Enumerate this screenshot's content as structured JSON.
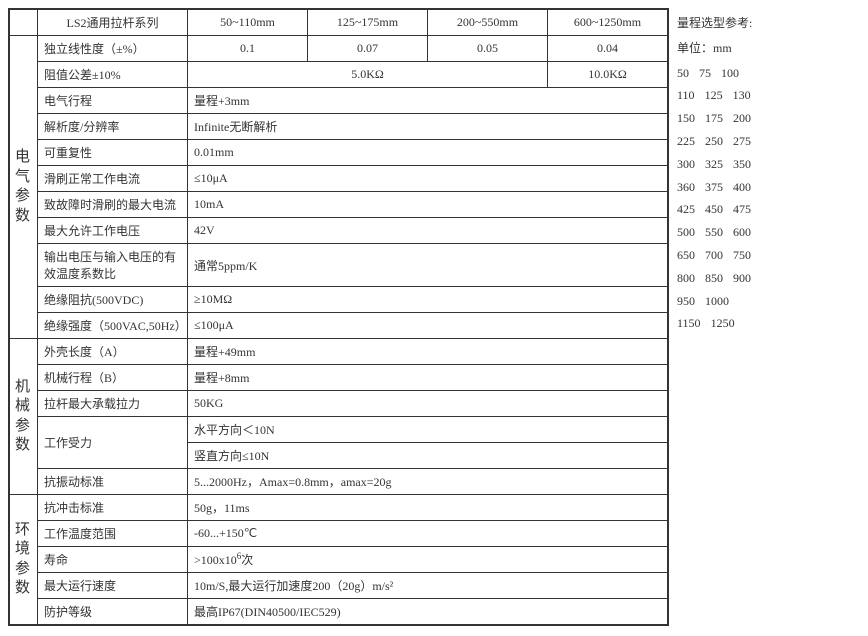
{
  "header": {
    "series": "LS2通用拉杆系列",
    "ranges": [
      "50~110mm",
      "125~175mm",
      "200~550mm",
      "600~1250mm"
    ]
  },
  "sections": {
    "elec": "电气参数",
    "mech": "机械参数",
    "env": "环境参数"
  },
  "rows": {
    "linearity": {
      "label": "独立线性度（±%）",
      "v": [
        "0.1",
        "0.07",
        "0.05",
        "0.04"
      ]
    },
    "resTol": {
      "label": "阻值公差±10%",
      "span3": "5.0KΩ",
      "last": "10.0KΩ"
    },
    "elecTravel": {
      "label": "电气行程",
      "v": "量程+3mm"
    },
    "resolution": {
      "label": "解析度/分辨率",
      "v": "Infinite无断解析"
    },
    "repeat": {
      "label": "可重复性",
      "v": "0.01mm"
    },
    "brushCurr": {
      "label": "滑刷正常工作电流",
      "v": "≤10μA"
    },
    "faultCurr": {
      "label": "致故障时滑刷的最大电流",
      "v": "10mA"
    },
    "maxVolt": {
      "label": "最大允许工作电压",
      "v": "42V"
    },
    "tempCoef": {
      "label": "输出电压与输入电压的有效温度系数比",
      "v": "通常5ppm/K"
    },
    "insRes": {
      "label": "绝缘阻抗(500VDC)",
      "v": "≥10MΩ"
    },
    "insStr": {
      "label": "绝缘强度（500VAC,50Hz）",
      "v": "≤100μA"
    },
    "housingLen": {
      "label": "外壳长度（A）",
      "v": "量程+49mm"
    },
    "mechTravel": {
      "label": "机械行程（B）",
      "v": "量程+8mm"
    },
    "maxPull": {
      "label": "拉杆最大承载拉力",
      "v": "50KG"
    },
    "workForce": {
      "label": "工作受力",
      "h": "水平方向＜10N",
      "v2": "竖直方向≤10N"
    },
    "vib": {
      "label": "抗振动标准",
      "v": "5...2000Hz，Amax=0.8mm，amax=20g"
    },
    "shock": {
      "label": "抗冲击标准",
      "v": "50g，11ms"
    },
    "tempRange": {
      "label": "工作温度范围",
      "v": "-60...+150℃"
    },
    "life": {
      "label": "寿命",
      "v": ">100x10",
      "sup": "6",
      "tail": "次"
    },
    "maxSpeed": {
      "label": "最大运行速度",
      "v": "10m/S,最大运行加速度200（20g）m/s²"
    },
    "ip": {
      "label": "防护等级",
      "v": "最高IP67(DIN40500/IEC529)"
    }
  },
  "side": {
    "title1": "量程选型参考:",
    "title2": "单位：mm",
    "nums": [
      [
        "50",
        "75",
        "100"
      ],
      [
        "110",
        "125",
        "130"
      ],
      [
        "150",
        "175",
        "200"
      ],
      [
        "225",
        "250",
        "275"
      ],
      [
        "300",
        "325",
        "350"
      ],
      [
        "360",
        "375",
        "400"
      ],
      [
        "425",
        "450",
        "475"
      ],
      [
        "500",
        "550",
        "600"
      ],
      [
        "650",
        "700",
        "750"
      ],
      [
        "800",
        "850",
        "900"
      ],
      [
        "950",
        "1000"
      ],
      [
        "1150",
        "1250"
      ]
    ]
  },
  "cols": {
    "vcol": 24,
    "label": 150,
    "range": 120
  },
  "colors": {
    "border": "#333333",
    "bg": "#ffffff",
    "text": "#333333"
  }
}
